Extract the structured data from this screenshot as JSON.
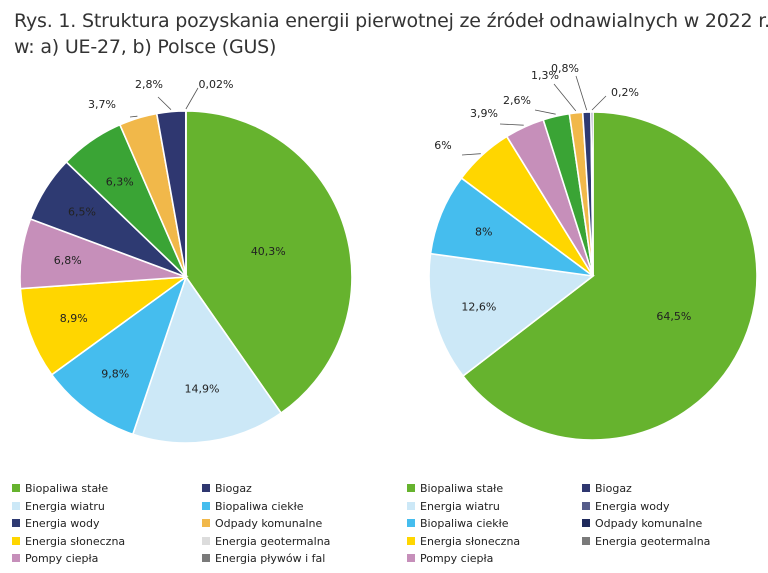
{
  "title_line1": "Rys. 1. Struktura pozyskania energii pierwotnej ze źródeł odnawialnych w 2022 r.",
  "title_line2": "w: a) UE-27, b) Polsce (GUS)",
  "chart_data": [
    {
      "type": "pie",
      "slices": [
        {
          "name": "Biopaliwa stałe",
          "value": 40.3,
          "label": "40,3%",
          "color": "#66b32e"
        },
        {
          "name": "Energia wiatru",
          "value": 14.9,
          "label": "14,9%",
          "color": "#cce8f7"
        },
        {
          "name": "Biopaliwa ciekłe",
          "value": 9.8,
          "label": "9,8%",
          "color": "#45bdee"
        },
        {
          "name": "Energia słoneczna",
          "value": 8.9,
          "label": "8,9%",
          "color": "#ffd600"
        },
        {
          "name": "Pompy ciepła",
          "value": 6.8,
          "label": "6,8%",
          "color": "#c68fba"
        },
        {
          "name": "Energia wody",
          "value": 6.5,
          "label": "6,5%",
          "color": "#2e3a72"
        },
        {
          "name": "Biogaz",
          "value": 6.3,
          "label": "6,3%",
          "color": "#3aa435"
        },
        {
          "name": "Odpady komunalne",
          "value": 3.7,
          "label": "3,7%",
          "color": "#f1b84a"
        },
        {
          "name": "Energia geotermalna",
          "value": 2.8,
          "label": "2,8%",
          "color": "#2f3770"
        },
        {
          "name": "Energia pływów i fal",
          "value": 0.02,
          "label": "0,02%",
          "color": "#7a7a7a"
        }
      ],
      "legend": [
        {
          "name": "Biopaliwa stałe",
          "color": "#66b32e"
        },
        {
          "name": "Biogaz",
          "color": "#2f3770"
        },
        {
          "name": "Energia wiatru",
          "color": "#cce8f7"
        },
        {
          "name": "Biopaliwa ciekłe",
          "color": "#45bdee"
        },
        {
          "name": "Energia wody",
          "color": "#2e3a72"
        },
        {
          "name": "Odpady komunalne",
          "color": "#f1b84a"
        },
        {
          "name": "Energia słoneczna",
          "color": "#ffd600"
        },
        {
          "name": "Energia geotermalna",
          "color": "#dcdcdc"
        },
        {
          "name": "Pompy ciepła",
          "color": "#c68fba"
        },
        {
          "name": "Energia pływów i fal",
          "color": "#7a7a7a"
        }
      ]
    },
    {
      "type": "pie",
      "slices": [
        {
          "name": "Biopaliwa stałe",
          "value": 64.5,
          "label": "64,5%",
          "color": "#66b32e"
        },
        {
          "name": "Energia wiatru",
          "value": 12.6,
          "label": "12,6%",
          "color": "#cce8f7"
        },
        {
          "name": "Biopaliwa ciekłe",
          "value": 8,
          "label": "8%",
          "color": "#45bdee"
        },
        {
          "name": "Energia słoneczna",
          "value": 6,
          "label": "6%",
          "color": "#ffd600"
        },
        {
          "name": "Pompy ciepła",
          "value": 3.9,
          "label": "3,9%",
          "color": "#c68fba"
        },
        {
          "name": "Biogaz",
          "value": 2.6,
          "label": "2,6%",
          "color": "#3aa435"
        },
        {
          "name": "Odpady komunalne",
          "value": 1.3,
          "label": "1,3%",
          "color": "#f1b84a"
        },
        {
          "name": "Energia wody",
          "value": 0.8,
          "label": "0,8%",
          "color": "#2e3a72"
        },
        {
          "name": "Energia geotermalna",
          "value": 0.2,
          "label": "0,2%",
          "color": "#1f2a5c"
        }
      ],
      "legend": [
        {
          "name": "Biopaliwa stałe",
          "color": "#66b32e"
        },
        {
          "name": "Biogaz",
          "color": "#2f3770"
        },
        {
          "name": "Energia wiatru",
          "color": "#cce8f7"
        },
        {
          "name": "Energia wody",
          "color": "#555c8a"
        },
        {
          "name": "Biopaliwa ciekłe",
          "color": "#45bdee"
        },
        {
          "name": "Odpady komunalne",
          "color": "#1f2a5c"
        },
        {
          "name": "Energia słoneczna",
          "color": "#ffd600"
        },
        {
          "name": "Energia geotermalna",
          "color": "#7a7a7a"
        },
        {
          "name": "Pompy ciepła",
          "color": "#c68fba"
        }
      ]
    }
  ]
}
